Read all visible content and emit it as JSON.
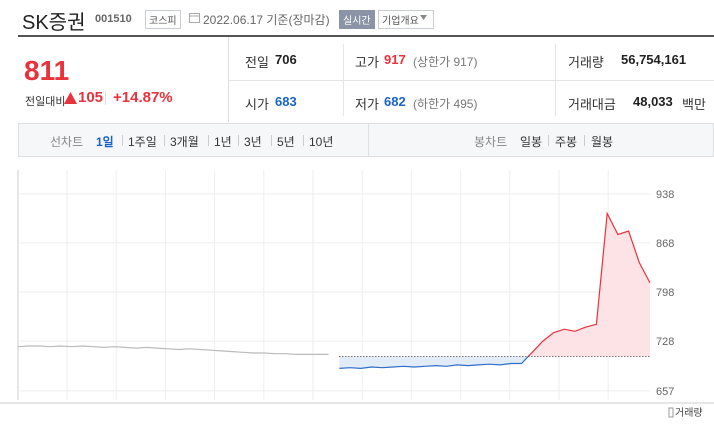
{
  "header": {
    "name": "SK증권",
    "code": "001510",
    "market": "코스피",
    "date": "2022.06.17 기준(장마감)",
    "realtime": "실시간",
    "overview": "기업개요"
  },
  "price": {
    "current": "811",
    "change_label": "전일대비",
    "change": "105",
    "rate": "+14.87%"
  },
  "stats": [
    [
      {
        "label": "전일",
        "value": "706",
        "tone": "flat"
      },
      {
        "label": "고가",
        "value": "917",
        "note": "(상한가 917)",
        "tone": "up"
      },
      {
        "label": "거래량",
        "value": "56,754,161",
        "tone": "flat"
      }
    ],
    [
      {
        "label": "시가",
        "value": "683",
        "tone": "down"
      },
      {
        "label": "저가",
        "value": "682",
        "note": "(하한가 495)",
        "tone": "down"
      },
      {
        "label": "거래대금",
        "value": "48,033",
        "unit": "백만",
        "tone": "flat"
      }
    ]
  ],
  "tabs": {
    "line_label": "선차트",
    "line_items": [
      "1일",
      "1주일",
      "3개월",
      "1년",
      "3년",
      "5년",
      "10년"
    ],
    "candle_label": "봉차트",
    "candle_items": [
      "일봉",
      "주봉",
      "월봉"
    ]
  },
  "chart_data": {
    "type": "line",
    "categories": [
      null,
      null,
      null,
      null,
      null,
      null,
      null,
      null,
      null,
      null,
      null,
      null,
      null,
      null,
      null,
      null,
      null,
      null,
      null,
      null,
      null,
      null,
      null,
      null,
      null,
      null,
      null,
      null,
      null,
      null,
      null,
      null,
      null,
      null,
      null,
      null,
      null,
      null,
      null,
      null,
      null,
      null,
      null,
      null,
      null,
      null,
      null,
      null,
      null,
      null,
      null,
      null,
      null,
      null,
      null,
      null,
      null,
      null,
      null,
      null
    ],
    "series": [
      {
        "color": "#bbbbbb",
        "values": [
          720,
          721,
          721,
          720,
          721,
          720,
          721,
          720,
          719,
          720,
          719,
          718,
          719,
          718,
          717,
          716,
          717,
          716,
          715,
          714,
          713,
          712,
          711,
          711,
          710,
          710,
          709,
          709,
          709,
          709,
          null,
          null,
          null,
          null,
          null,
          null,
          null,
          null,
          null,
          null,
          null,
          null,
          null,
          null,
          null,
          null,
          null,
          null,
          null,
          null,
          null,
          null,
          null,
          null,
          null,
          null,
          null,
          null,
          null,
          null
        ]
      },
      {
        "color_above": "#e8323c",
        "color_below": "#2f6fc7",
        "values": [
          null,
          null,
          null,
          null,
          null,
          null,
          null,
          null,
          null,
          null,
          null,
          null,
          null,
          null,
          null,
          null,
          null,
          null,
          null,
          null,
          null,
          null,
          null,
          null,
          null,
          null,
          null,
          null,
          null,
          null,
          689,
          690,
          689,
          691,
          690,
          691,
          692,
          691,
          692,
          693,
          692,
          694,
          693,
          694,
          695,
          694,
          696,
          696,
          712,
          728,
          740,
          745,
          742,
          748,
          752,
          910,
          880,
          885,
          840,
          811
        ]
      }
    ],
    "baseline": 706,
    "ylim": [
      644,
      972
    ],
    "yticks": [
      938,
      868,
      798,
      728,
      657
    ],
    "grid": true,
    "volume_label": "거래량"
  }
}
